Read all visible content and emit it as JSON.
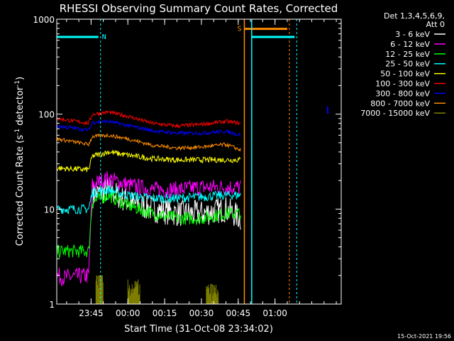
{
  "chart_data": {
    "type": "line",
    "title": "RHESSI Observing Summary Count Rates, Corrected",
    "xlabel": "Start Time (31-Oct-08 23:34:02)",
    "ylabel_parts": [
      "Corrected Count Rate (s",
      "-1",
      " detector",
      "-1",
      ")"
    ],
    "yscale": "log",
    "ylim": [
      1,
      1000
    ],
    "xlim_min": [
      -3,
      113
    ],
    "x_units": "minutes after 23:34:02",
    "y_ticks": [
      {
        "v": 1,
        "label": "1"
      },
      {
        "v": 10,
        "label": "10"
      },
      {
        "v": 100,
        "label": "100"
      },
      {
        "v": 1000,
        "label": "1000"
      }
    ],
    "x_ticks": [
      {
        "t": 11,
        "label": "23:45"
      },
      {
        "t": 26,
        "label": "00:00"
      },
      {
        "t": 41,
        "label": "00:15"
      },
      {
        "t": 56,
        "label": "00:30"
      },
      {
        "t": 71,
        "label": "00:45"
      },
      {
        "t": 86,
        "label": "01:00"
      }
    ],
    "legend_header": [
      "Det 1,3,4,5,6,9,",
      "Att 0"
    ],
    "timestamp": "15-Oct-2021 19:56",
    "data_gap": [
      73.5,
      76.5
    ],
    "series": [
      {
        "name": "3 - 6 keV",
        "color": "#ffffff",
        "noise": 0.14,
        "points": [
          [
            -3,
            null
          ],
          [
            10,
            null
          ],
          [
            11.5,
            14
          ],
          [
            18,
            16
          ],
          [
            26,
            12
          ],
          [
            36,
            10
          ],
          [
            46,
            9
          ],
          [
            56,
            9
          ],
          [
            66,
            10
          ],
          [
            72,
            8
          ]
        ]
      },
      {
        "name": "6 - 12 keV",
        "color": "#ff00ff",
        "noise": 0.09,
        "points": [
          [
            -3,
            2
          ],
          [
            0,
            1.9
          ],
          [
            10,
            2
          ],
          [
            11.5,
            18
          ],
          [
            18,
            21
          ],
          [
            26,
            18
          ],
          [
            36,
            16
          ],
          [
            46,
            16
          ],
          [
            56,
            17
          ],
          [
            66,
            17
          ],
          [
            72,
            17
          ]
        ]
      },
      {
        "name": "12 - 25 keV",
        "color": "#00ff00",
        "noise": 0.07,
        "points": [
          [
            -3,
            3.6
          ],
          [
            10,
            3.6
          ],
          [
            11.5,
            12
          ],
          [
            18,
            14
          ],
          [
            26,
            11
          ],
          [
            36,
            9
          ],
          [
            46,
            8
          ],
          [
            56,
            8
          ],
          [
            66,
            9
          ],
          [
            72,
            9
          ]
        ]
      },
      {
        "name": "25 - 50 keV",
        "color": "#00ffff",
        "noise": 0.05,
        "points": [
          [
            -3,
            10
          ],
          [
            10,
            10
          ],
          [
            11.5,
            15
          ],
          [
            18,
            16
          ],
          [
            26,
            14
          ],
          [
            36,
            13
          ],
          [
            46,
            13
          ],
          [
            56,
            13.5
          ],
          [
            66,
            14
          ],
          [
            72,
            14
          ]
        ]
      },
      {
        "name": "50 - 100 keV",
        "color": "#ffff00",
        "noise": 0.03,
        "points": [
          [
            -3,
            27
          ],
          [
            10,
            26
          ],
          [
            11.5,
            36
          ],
          [
            18,
            40
          ],
          [
            26,
            37
          ],
          [
            36,
            34
          ],
          [
            46,
            33
          ],
          [
            56,
            33
          ],
          [
            66,
            33
          ],
          [
            72,
            33
          ]
        ]
      },
      {
        "name": "100 - 300 keV",
        "color": "#ff0000",
        "noise": 0.02,
        "points": [
          [
            -3,
            90
          ],
          [
            10,
            80
          ],
          [
            11.5,
            100
          ],
          [
            18,
            105
          ],
          [
            26,
            95
          ],
          [
            36,
            80
          ],
          [
            46,
            75
          ],
          [
            56,
            78
          ],
          [
            66,
            84
          ],
          [
            72,
            80
          ]
        ]
      },
      {
        "name": "300 - 800 keV",
        "color": "#0000ff",
        "noise": 0.02,
        "points": [
          [
            -3,
            75
          ],
          [
            10,
            68
          ],
          [
            11.5,
            82
          ],
          [
            18,
            84
          ],
          [
            26,
            76
          ],
          [
            36,
            67
          ],
          [
            46,
            63
          ],
          [
            56,
            63
          ],
          [
            66,
            66
          ],
          [
            72,
            60
          ]
        ]
      },
      {
        "name": "800 - 7000 keV",
        "color": "#ff8c00",
        "noise": 0.02,
        "points": [
          [
            -3,
            55
          ],
          [
            10,
            48
          ],
          [
            11.5,
            58
          ],
          [
            18,
            60
          ],
          [
            26,
            55
          ],
          [
            36,
            47
          ],
          [
            46,
            44
          ],
          [
            56,
            45
          ],
          [
            66,
            48
          ],
          [
            72,
            42
          ]
        ]
      },
      {
        "name": "7000 - 15000 keV",
        "color": "#808000",
        "noise": 0.0,
        "points": [
          [
            13,
            1.6
          ],
          [
            16,
            1.6
          ],
          [
            26,
            1.3
          ],
          [
            31,
            1.4
          ],
          [
            58,
            1.2
          ],
          [
            63,
            1.4
          ]
        ]
      }
    ],
    "flags": [
      {
        "label": "N",
        "color": "#00ffff",
        "level": 650,
        "segments": [
          [
            -3,
            14
          ]
        ],
        "markers": [
          14
        ]
      },
      {
        "label": "S",
        "color": "#ff8c00",
        "level": 790,
        "segments": [
          [
            73.5,
            91
          ]
        ],
        "markers": [
          73.5,
          91
        ]
      },
      {
        "label": "",
        "color": "#00ffff",
        "level": 650,
        "segments": [
          [
            76.5,
            94
          ]
        ],
        "markers": [
          76.5,
          94
        ]
      }
    ]
  }
}
